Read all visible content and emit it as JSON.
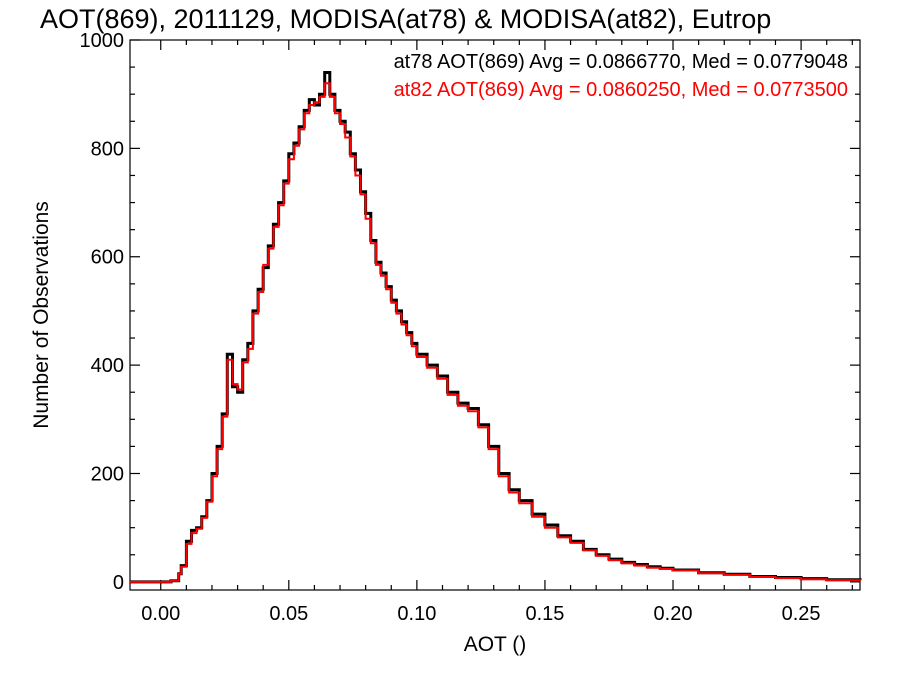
{
  "chart_data": {
    "type": "line",
    "step": true,
    "title": "AOT(869), 2011129, MODISA(at78) & MODISA(at82), Eutrop",
    "xlabel": "AOT ()",
    "ylabel": "Number of Observations",
    "xlim": [
      -0.012,
      0.273
    ],
    "ylim": [
      -15,
      1000
    ],
    "x_ticks": [
      0.0,
      0.05,
      0.1,
      0.15,
      0.2,
      0.25
    ],
    "x_tick_labels": [
      "0.00",
      "0.05",
      "0.10",
      "0.15",
      "0.20",
      "0.25"
    ],
    "y_ticks": [
      0,
      200,
      400,
      600,
      800,
      1000
    ],
    "y_tick_labels": [
      "0",
      "200",
      "400",
      "600",
      "800",
      "1000"
    ],
    "grid": false,
    "legend_position": "top-right",
    "annotations": [
      {
        "text": "at78 AOT(869) Avg = 0.0866770, Med = 0.0779048",
        "color": "#000000"
      },
      {
        "text": "at82 AOT(869) Avg = 0.0860250, Med = 0.0773500",
        "color": "#ff0000"
      }
    ],
    "series": [
      {
        "color": "#000000",
        "x": [
          -0.012,
          0.004,
          0.007,
          0.008,
          0.01,
          0.012,
          0.014,
          0.016,
          0.018,
          0.02,
          0.022,
          0.024,
          0.026,
          0.028,
          0.03,
          0.032,
          0.034,
          0.036,
          0.038,
          0.04,
          0.042,
          0.044,
          0.046,
          0.048,
          0.05,
          0.052,
          0.054,
          0.056,
          0.058,
          0.06,
          0.062,
          0.064,
          0.066,
          0.068,
          0.07,
          0.072,
          0.074,
          0.076,
          0.078,
          0.08,
          0.082,
          0.084,
          0.086,
          0.088,
          0.09,
          0.092,
          0.094,
          0.096,
          0.098,
          0.1,
          0.104,
          0.108,
          0.112,
          0.116,
          0.12,
          0.124,
          0.128,
          0.132,
          0.136,
          0.14,
          0.145,
          0.15,
          0.155,
          0.16,
          0.165,
          0.17,
          0.175,
          0.18,
          0.185,
          0.19,
          0.195,
          0.2,
          0.21,
          0.22,
          0.23,
          0.24,
          0.25,
          0.26,
          0.273
        ],
        "y": [
          0,
          2,
          15,
          30,
          75,
          95,
          100,
          120,
          150,
          200,
          250,
          310,
          420,
          360,
          350,
          410,
          440,
          500,
          540,
          580,
          620,
          660,
          700,
          740,
          790,
          810,
          840,
          870,
          890,
          880,
          900,
          940,
          900,
          870,
          850,
          830,
          790,
          760,
          720,
          680,
          630,
          590,
          570,
          545,
          520,
          500,
          480,
          460,
          440,
          420,
          400,
          380,
          350,
          330,
          320,
          290,
          250,
          200,
          170,
          150,
          125,
          105,
          85,
          75,
          60,
          50,
          42,
          36,
          32,
          28,
          25,
          22,
          17,
          14,
          10,
          8,
          6,
          4,
          3
        ]
      },
      {
        "color": "#ff0000",
        "x": [
          -0.012,
          0.004,
          0.007,
          0.008,
          0.01,
          0.012,
          0.014,
          0.016,
          0.018,
          0.02,
          0.022,
          0.024,
          0.026,
          0.028,
          0.03,
          0.032,
          0.034,
          0.036,
          0.038,
          0.04,
          0.042,
          0.044,
          0.046,
          0.048,
          0.05,
          0.052,
          0.054,
          0.056,
          0.058,
          0.06,
          0.062,
          0.064,
          0.066,
          0.068,
          0.07,
          0.072,
          0.074,
          0.076,
          0.078,
          0.08,
          0.082,
          0.084,
          0.086,
          0.088,
          0.09,
          0.092,
          0.094,
          0.096,
          0.098,
          0.1,
          0.104,
          0.108,
          0.112,
          0.116,
          0.12,
          0.124,
          0.128,
          0.132,
          0.136,
          0.14,
          0.145,
          0.15,
          0.155,
          0.16,
          0.165,
          0.17,
          0.175,
          0.18,
          0.185,
          0.19,
          0.195,
          0.2,
          0.21,
          0.22,
          0.23,
          0.24,
          0.25,
          0.26,
          0.273
        ],
        "y": [
          0,
          2,
          15,
          28,
          70,
          90,
          98,
          118,
          148,
          195,
          245,
          305,
          410,
          365,
          355,
          405,
          430,
          495,
          535,
          585,
          615,
          655,
          695,
          735,
          780,
          805,
          835,
          865,
          880,
          885,
          895,
          920,
          895,
          865,
          845,
          820,
          785,
          750,
          715,
          670,
          625,
          585,
          565,
          540,
          515,
          495,
          475,
          455,
          435,
          415,
          395,
          375,
          345,
          325,
          315,
          285,
          245,
          195,
          165,
          145,
          120,
          100,
          82,
          72,
          58,
          48,
          40,
          34,
          30,
          26,
          24,
          21,
          16,
          13,
          9,
          7,
          5,
          3,
          2
        ]
      }
    ]
  }
}
